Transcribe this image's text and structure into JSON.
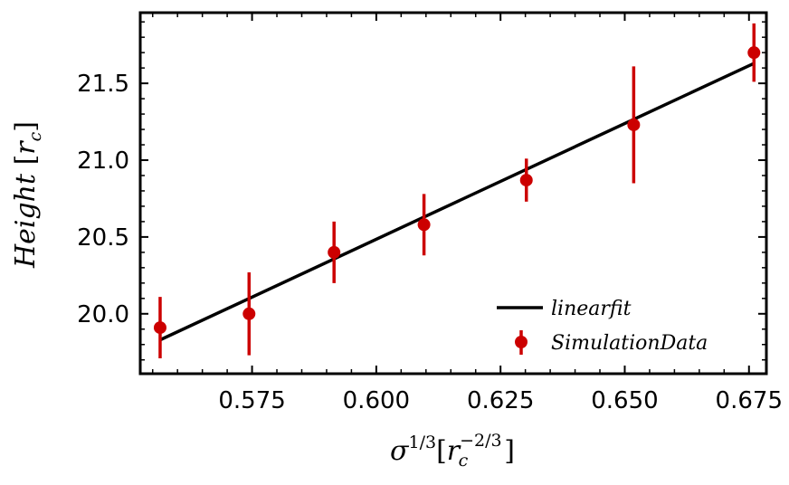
{
  "chart_data": {
    "type": "scatter",
    "xlabel": "σ^{1/3}[r_c^{-2/3}]",
    "ylabel": "Height [r_c]",
    "xlabel_parts": {
      "base": "σ",
      "exp": "1/3",
      "bracket_open": "[",
      "inner": "r",
      "inner_sub": "c",
      "inner_exp": "−2/3",
      "bracket_close": "]"
    },
    "ylabel_parts": {
      "word": "Height",
      "bracket_open": "[",
      "inner": "r",
      "inner_sub": "c",
      "bracket_close": "]"
    },
    "xlim": [
      0.5525,
      0.6785
    ],
    "ylim": [
      19.61,
      21.96
    ],
    "x_ticks": [
      0.575,
      0.6,
      0.625,
      0.65,
      0.675
    ],
    "x_tick_labels": [
      "0.575",
      "0.600",
      "0.625",
      "0.650",
      "0.675"
    ],
    "y_ticks": [
      20.0,
      20.5,
      21.0,
      21.5
    ],
    "y_tick_labels": [
      "20.0",
      "20.5",
      "21.0",
      "21.5"
    ],
    "x_minor_step": 0.005,
    "y_minor_step": 0.1,
    "grid": false,
    "legend_position": "lower-right",
    "series": [
      {
        "name": "SimulationData",
        "kind": "errorbar",
        "color": "#cc0000",
        "x": [
          0.5565,
          0.5744,
          0.5915,
          0.6096,
          0.6302,
          0.6518,
          0.676
        ],
        "y": [
          19.91,
          20.0,
          20.4,
          20.58,
          20.87,
          21.23,
          21.7
        ],
        "yerr": [
          0.2,
          0.27,
          0.2,
          0.2,
          0.14,
          0.38,
          0.19
        ]
      },
      {
        "name": "linearfit",
        "kind": "line",
        "color": "#000000",
        "x": [
          0.5565,
          0.676
        ],
        "y": [
          19.83,
          21.63
        ]
      }
    ]
  }
}
